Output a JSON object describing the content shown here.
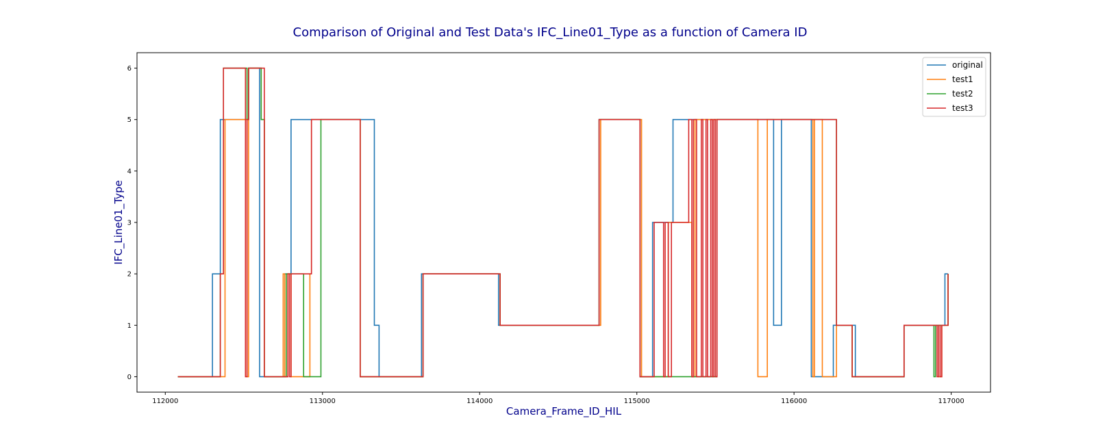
{
  "chart_data": {
    "type": "line",
    "step": "post",
    "title": "Comparison of Original and Test Data's IFC_Line01_Type as a function of Camera ID",
    "xlabel": "Camera_Frame_ID_HIL",
    "ylabel": "IFC_Line01_Type",
    "xlim": [
      111820,
      117250
    ],
    "ylim": [
      -0.3,
      6.3
    ],
    "xticks": [
      112000,
      113000,
      114000,
      115000,
      116000,
      117000
    ],
    "yticks": [
      0,
      1,
      2,
      3,
      4,
      5,
      6
    ],
    "grid": false,
    "legend": {
      "position": "top-right",
      "entries": [
        "original",
        "test1",
        "test2",
        "test3"
      ]
    },
    "series": [
      {
        "name": "original",
        "color": "#1f77b4",
        "x": [
          112080,
          112300,
          112350,
          112530,
          112600,
          112650,
          112760,
          112800,
          113330,
          113360,
          113630,
          114120,
          114760,
          115020,
          115100,
          115230,
          115870,
          115920,
          116110,
          116250,
          116390,
          116700,
          116960,
          116980
        ],
        "y": [
          0,
          2,
          5,
          6,
          0,
          0,
          2,
          5,
          1,
          0,
          2,
          1,
          5,
          0,
          3,
          5,
          1,
          5,
          0,
          1,
          0,
          1,
          2,
          2
        ]
      },
      {
        "name": "test1",
        "color": "#ff7f0e",
        "x": [
          112080,
          112380,
          112520,
          112530,
          112610,
          112630,
          112750,
          112760,
          112780,
          112800,
          112920,
          112930,
          113240,
          113640,
          114130,
          114770,
          115030,
          115200,
          115350,
          115370,
          115520,
          115620,
          115770,
          115830,
          116120,
          116130,
          116180,
          116270,
          116370,
          116700,
          116920,
          116940,
          116980
        ],
        "y": [
          0,
          5,
          0,
          6,
          5,
          0,
          2,
          0,
          2,
          0,
          2,
          5,
          0,
          2,
          1,
          5,
          0,
          3,
          0,
          5,
          5,
          5,
          0,
          5,
          0,
          5,
          0,
          1,
          0,
          1,
          0,
          1,
          2
        ]
      },
      {
        "name": "test2",
        "color": "#2ca02c",
        "x": [
          112080,
          112350,
          112370,
          112520,
          112530,
          112610,
          112630,
          112770,
          112880,
          112990,
          113240,
          113640,
          114130,
          114760,
          115020,
          115510,
          116270,
          116370,
          116700,
          116890,
          116900,
          116980
        ],
        "y": [
          0,
          2,
          6,
          5,
          6,
          5,
          0,
          2,
          0,
          5,
          0,
          2,
          1,
          5,
          0,
          5,
          1,
          0,
          1,
          0,
          1,
          2
        ]
      },
      {
        "name": "test3",
        "color": "#d62728",
        "x": [
          112080,
          112350,
          112370,
          112510,
          112520,
          112530,
          112630,
          112780,
          112790,
          112800,
          112930,
          113240,
          113640,
          114130,
          114760,
          115020,
          115110,
          115170,
          115180,
          115200,
          115220,
          115330,
          115350,
          115360,
          115380,
          115410,
          115420,
          115440,
          115450,
          115470,
          115480,
          115490,
          115500,
          115510,
          116270,
          116370,
          116700,
          116910,
          116920,
          116930,
          116940,
          116980
        ],
        "y": [
          0,
          2,
          6,
          0,
          5,
          6,
          0,
          2,
          0,
          2,
          5,
          0,
          2,
          1,
          5,
          0,
          3,
          0,
          3,
          0,
          3,
          5,
          0,
          5,
          0,
          5,
          0,
          5,
          0,
          5,
          0,
          5,
          0,
          5,
          1,
          0,
          1,
          0,
          1,
          0,
          1,
          2
        ]
      }
    ]
  }
}
